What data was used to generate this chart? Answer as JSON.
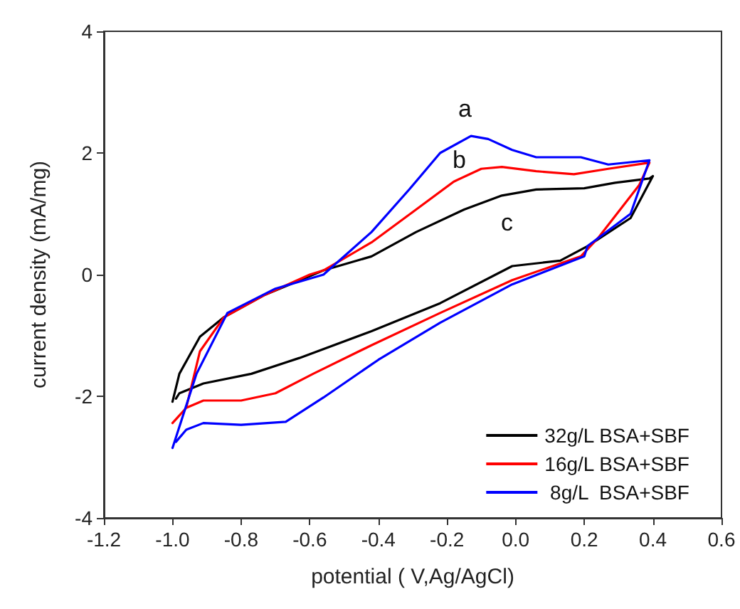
{
  "chart_data": {
    "type": "line",
    "xlabel": "potential ( V,Ag/AgCl)",
    "ylabel": "current density (mA/mg)",
    "xlim": [
      -1.2,
      0.6
    ],
    "xticks": [
      {
        "value": -1.2,
        "label": "-1.2"
      },
      {
        "value": -1.0,
        "label": "-1.0"
      },
      {
        "value": -0.8,
        "label": "-0.8"
      },
      {
        "value": -0.6,
        "label": "-0.6"
      },
      {
        "value": -0.4,
        "label": "-0.4"
      },
      {
        "value": -0.2,
        "label": "-0.2"
      },
      {
        "value": 0,
        "label": "0.0"
      },
      {
        "value": 0.2,
        "label": "0.2"
      },
      {
        "value": 0.4,
        "label": "0.4"
      },
      {
        "value": 0.6,
        "label": "0.6"
      }
    ],
    "ylim": [
      -4,
      4
    ],
    "yticks": [
      -4,
      -2,
      0,
      2,
      4
    ],
    "grid": false,
    "legend": "bottom right",
    "marker": "none",
    "line_style": "solid",
    "annotations": [
      "a",
      "b",
      "c"
    ],
    "series": [
      {
        "name": "32g/L BSA+SBF",
        "color": "#000000",
        "x": [
          -1.0,
          -0.98,
          -0.92,
          -0.85,
          -0.73,
          -0.64,
          -0.56,
          -0.42,
          -0.29,
          -0.15,
          -0.04,
          0.06,
          0.2,
          0.29,
          0.39,
          0.4,
          0.335,
          0.21,
          0.13,
          -0.01,
          -0.22,
          -0.42,
          -0.63,
          -0.77,
          -0.91,
          -0.98,
          -0.99
        ],
        "values": [
          -2.09,
          -1.63,
          -1.02,
          -0.7,
          -0.33,
          -0.12,
          0.07,
          0.3,
          0.7,
          1.07,
          1.3,
          1.4,
          1.42,
          1.51,
          1.58,
          1.62,
          0.93,
          0.47,
          0.23,
          0.14,
          -0.47,
          -0.93,
          -1.37,
          -1.63,
          -1.79,
          -1.95,
          -2.04
        ]
      },
      {
        "name": "16g/L BSA+SBF",
        "color": "#ff0000",
        "x": [
          -1.0,
          -0.96,
          -0.92,
          -0.85,
          -0.73,
          -0.6,
          -0.56,
          -0.42,
          -0.29,
          -0.18,
          -0.1,
          -0.04,
          0.06,
          0.17,
          0.27,
          0.39,
          0.36,
          0.24,
          0.19,
          -0.01,
          -0.22,
          -0.42,
          -0.59,
          -0.7,
          -0.8,
          -0.91,
          -0.96,
          -0.99
        ],
        "values": [
          -2.44,
          -2.19,
          -1.26,
          -0.7,
          -0.33,
          0.0,
          0.07,
          0.53,
          1.07,
          1.53,
          1.74,
          1.77,
          1.7,
          1.65,
          1.74,
          1.84,
          1.47,
          0.6,
          0.3,
          -0.09,
          -0.63,
          -1.16,
          -1.63,
          -1.95,
          -2.07,
          -2.07,
          -2.19,
          -2.38
        ]
      },
      {
        "name": " 8g/L  BSA+SBF",
        "color": "#0000ff",
        "x": [
          -1.0,
          -0.93,
          -0.84,
          -0.7,
          -0.56,
          -0.42,
          -0.31,
          -0.22,
          -0.13,
          -0.08,
          -0.01,
          0.06,
          0.19,
          0.27,
          0.39,
          0.335,
          0.21,
          0.2,
          -0.01,
          -0.22,
          -0.4,
          -0.56,
          -0.67,
          -0.8,
          -0.91,
          -0.96,
          -0.99
        ],
        "values": [
          -2.85,
          -1.63,
          -0.63,
          -0.23,
          0.0,
          0.7,
          1.4,
          2.0,
          2.28,
          2.23,
          2.05,
          1.93,
          1.93,
          1.81,
          1.88,
          1.0,
          0.47,
          0.3,
          -0.16,
          -0.79,
          -1.4,
          -2.02,
          -2.42,
          -2.47,
          -2.44,
          -2.55,
          -2.75
        ]
      }
    ]
  }
}
